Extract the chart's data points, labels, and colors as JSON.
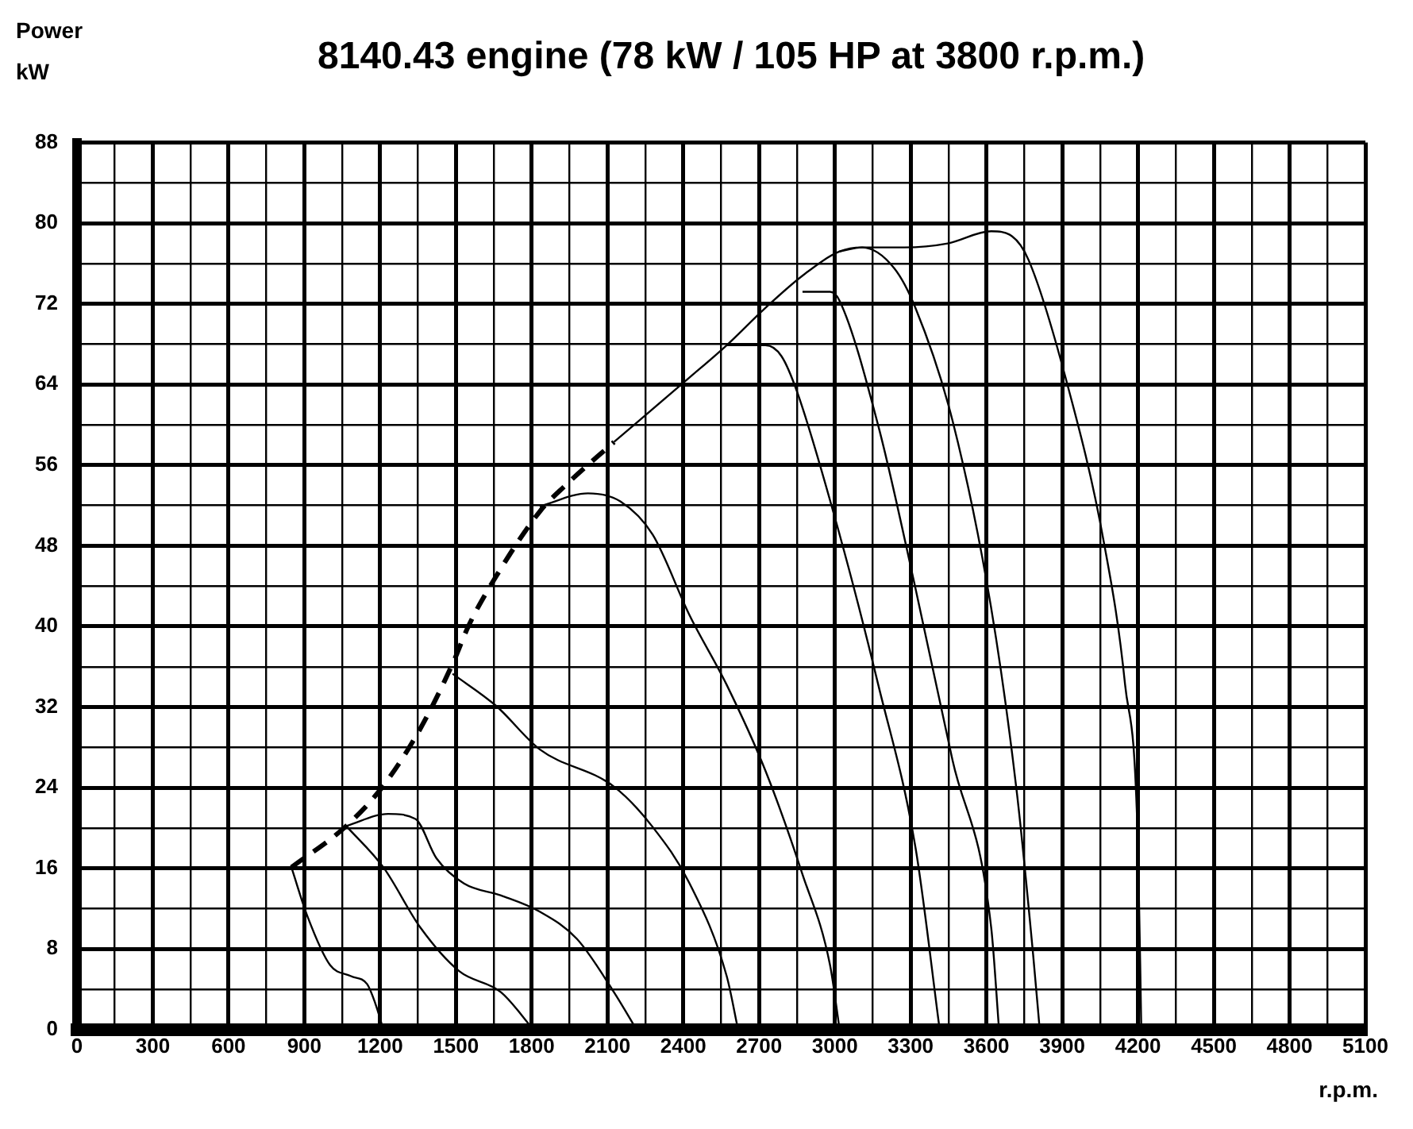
{
  "chart_data": {
    "type": "line",
    "title": "8140.43 engine (78 kW / 105 HP at 3800 r.p.m.)",
    "ylabel": "Power kW",
    "xlabel": "r.p.m.",
    "xlim": [
      0,
      5100
    ],
    "xticks": [
      0,
      {
        "value": 150,
        "label": null
      },
      300,
      {
        "value": 450,
        "label": null
      },
      600,
      {
        "value": 750,
        "label": null
      },
      900,
      {
        "value": 1050,
        "label": null
      },
      1200,
      {
        "value": 1350,
        "label": null
      },
      1500,
      {
        "value": 1650,
        "label": null
      },
      1800,
      {
        "value": 1950,
        "label": null
      },
      2100,
      {
        "value": 2250,
        "label": null
      },
      2400,
      {
        "value": 2550,
        "label": null
      },
      2700,
      {
        "value": 2850,
        "label": null
      },
      3000,
      {
        "value": 3150,
        "label": null
      },
      3300,
      {
        "value": 3450,
        "label": null
      },
      3600,
      {
        "value": 3750,
        "label": null
      },
      3900,
      {
        "value": 4050,
        "label": null
      },
      4200,
      {
        "value": 4350,
        "label": null
      },
      4500,
      {
        "value": 4650,
        "label": null
      },
      4800,
      {
        "value": 4950,
        "label": null
      },
      5100
    ],
    "ylim": [
      0,
      88
    ],
    "yticks": [
      0,
      {
        "value": 4,
        "label": null
      },
      8,
      {
        "value": 12,
        "label": null
      },
      16,
      {
        "value": 20,
        "label": null
      },
      24,
      {
        "value": 28,
        "label": null
      },
      32,
      {
        "value": 36,
        "label": null
      },
      40,
      {
        "value": 44,
        "label": null
      },
      48,
      {
        "value": 52,
        "label": null
      },
      56,
      {
        "value": 60,
        "label": null
      },
      64,
      {
        "value": 68,
        "label": null
      },
      72,
      {
        "value": 76,
        "label": null
      },
      80,
      {
        "value": 84,
        "label": null
      },
      88
    ],
    "grid": true,
    "legend": false,
    "marker": "none",
    "series": [
      {
        "color": "#000000",
        "line_style": "dashed",
        "x": [
          849,
          1066,
          1213,
          1360,
          1487,
          1551,
          1660,
          1832,
          1934,
          2126
        ],
        "values": [
          16.1,
          20.2,
          24.2,
          29.9,
          36.3,
          40.1,
          45,
          51.4,
          54,
          58.3
        ]
      },
      {
        "color": "#000000",
        "line_style": "solid",
        "x": [
          2126,
          2425,
          2572,
          2725,
          2872,
          3019,
          3108,
          3275,
          3447,
          3619,
          3702,
          3766,
          3913,
          4066,
          4149,
          4200,
          4213
        ],
        "values": [
          58.3,
          64.7,
          67.9,
          71.6,
          74.8,
          77.2,
          77.6,
          77.6,
          78,
          79.2,
          78.7,
          76.4,
          64.7,
          48.2,
          34.2,
          18.1,
          0
        ]
      },
      {
        "color": "#000000",
        "line_style": "solid",
        "x": [
          849,
          913,
          1002,
          1085,
          1149,
          1181,
          1213
        ],
        "values": [
          16.1,
          11.2,
          6.4,
          5.3,
          4.5,
          2.6,
          0
        ]
      },
      {
        "color": "#000000",
        "line_style": "solid",
        "x": [
          1066,
          1213,
          1360,
          1513,
          1679,
          1807
        ],
        "values": [
          20.2,
          16.1,
          10.1,
          5.8,
          3.7,
          0
        ]
      },
      {
        "color": "#000000",
        "line_style": "solid",
        "x": [
          1066,
          1232,
          1340,
          1423,
          1532,
          1679,
          1832,
          1979,
          2126,
          2215
        ],
        "values": [
          20.2,
          21.4,
          20.9,
          17,
          14.5,
          13.3,
          11.7,
          9,
          3.7,
          0
        ]
      },
      {
        "color": "#000000",
        "line_style": "solid",
        "x": [
          1487,
          1660,
          1832,
          2126,
          2279,
          2425,
          2572,
          2617
        ],
        "values": [
          35.3,
          32.1,
          27.8,
          24.1,
          20.1,
          14.5,
          5.3,
          0
        ]
      },
      {
        "color": "#000000",
        "line_style": "solid",
        "x": [
          1832,
          2023,
          2151,
          2279,
          2425,
          2572,
          2725,
          2872,
          2981,
          3019
        ],
        "values": [
          51.9,
          53.2,
          52.4,
          49.1,
          41.1,
          34.2,
          25.7,
          15.4,
          6.4,
          0
        ]
      },
      {
        "color": "#000000",
        "line_style": "solid",
        "x": [
          2572,
          2725,
          2789,
          2853,
          3019,
          3172,
          3319,
          3415
        ],
        "values": [
          67.9,
          67.9,
          66.8,
          63.1,
          49.1,
          34.2,
          18.1,
          0
        ]
      },
      {
        "color": "#000000",
        "line_style": "solid",
        "x": [
          2872,
          2981,
          3019,
          3172,
          3319,
          3466,
          3619,
          3650
        ],
        "values": [
          73.2,
          73.2,
          72.3,
          59.9,
          43.8,
          26.7,
          10.1,
          0
        ]
      },
      {
        "color": "#000000",
        "line_style": "solid",
        "x": [
          3019,
          3108,
          3236,
          3319,
          3466,
          3619,
          3721,
          3785,
          3811
        ],
        "values": [
          77.2,
          77.6,
          75.5,
          71.6,
          60.4,
          41.8,
          23.4,
          7.4,
          0
        ]
      }
    ]
  }
}
